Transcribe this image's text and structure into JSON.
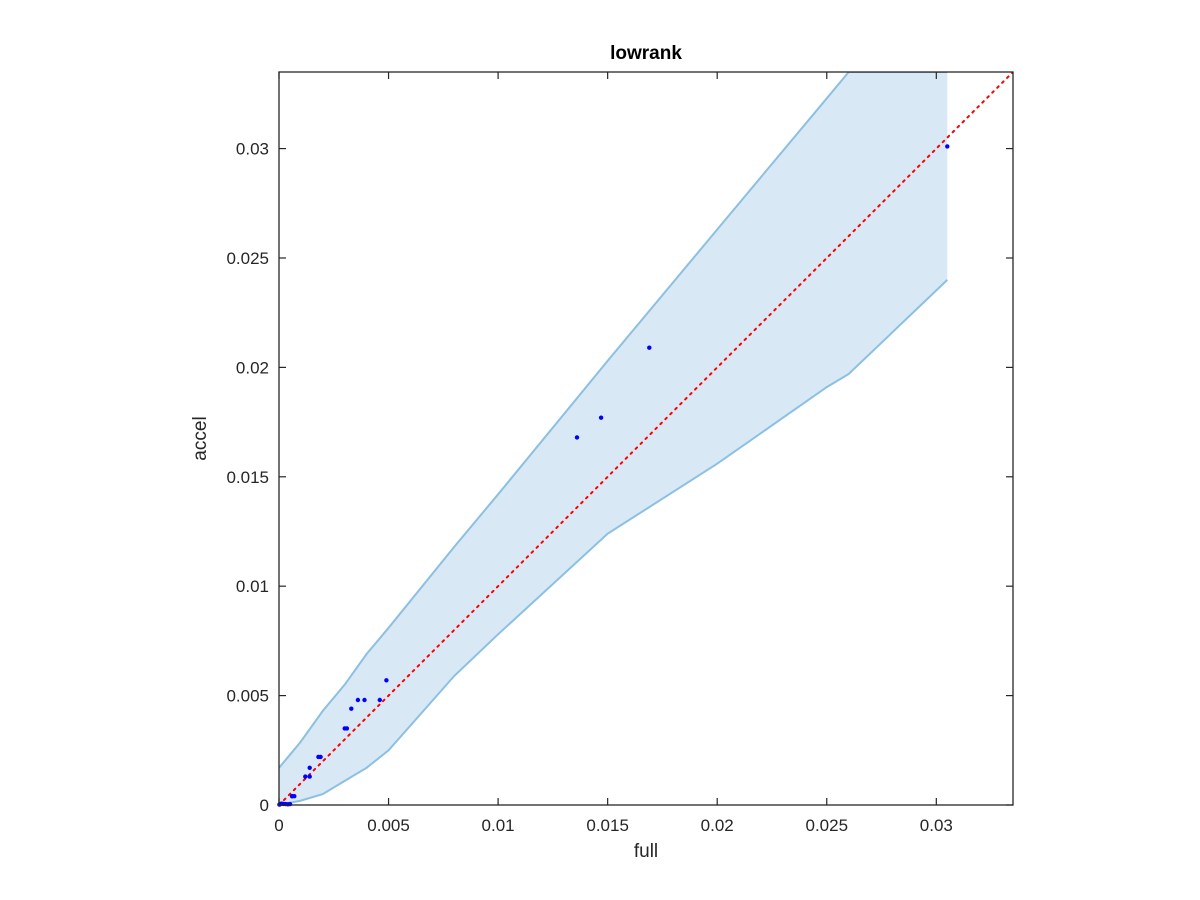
{
  "colors": {
    "band_fill": "#d9e8f5",
    "band_edge": "#8cc0e2",
    "points": "#0000ff",
    "diagonal": "#ff0000",
    "axes": "#262626"
  },
  "chart_data": {
    "type": "scatter",
    "title": "lowrank",
    "xlabel": "full",
    "ylabel": "accel",
    "xlim": [
      0,
      0.0335
    ],
    "ylim": [
      0,
      0.0335
    ],
    "grid": false,
    "x_ticks": [
      0,
      0.005,
      0.01,
      0.015,
      0.02,
      0.025,
      0.03
    ],
    "x_tick_labels": [
      "0",
      "0.005",
      "0.01",
      "0.015",
      "0.02",
      "0.025",
      "0.03"
    ],
    "y_ticks": [
      0,
      0.005,
      0.01,
      0.015,
      0.02,
      0.025,
      0.03
    ],
    "y_tick_labels": [
      "0",
      "0.005",
      "0.01",
      "0.015",
      "0.02",
      "0.025",
      "0.03"
    ],
    "series": [
      {
        "kind": "points",
        "x": [
          2e-05,
          4e-05,
          8e-05,
          0.00012,
          0.0002,
          0.0003,
          0.0004,
          0.0005,
          0.0006,
          0.0006,
          0.0007,
          0.0012,
          0.0014,
          0.0014,
          0.0018,
          0.0019,
          0.003,
          0.0031,
          0.0033,
          0.0036,
          0.0039,
          0.0046,
          0.0049,
          0.0136,
          0.0147,
          0.0169,
          0.0305
        ],
        "y": [
          2e-05,
          3e-05,
          5e-05,
          6e-05,
          5e-05,
          4e-05,
          3e-05,
          4e-05,
          0.0004,
          0.0004,
          0.0004,
          0.0013,
          0.0013,
          0.0017,
          0.0022,
          0.0022,
          0.0035,
          0.0035,
          0.0044,
          0.0048,
          0.0048,
          0.0048,
          0.0057,
          0.0168,
          0.0177,
          0.0209,
          0.0301
        ]
      },
      {
        "kind": "reference-line",
        "x": [
          0,
          0.0335
        ],
        "y": [
          0,
          0.0335
        ]
      },
      {
        "kind": "band",
        "x": [
          0,
          0.0005,
          0.001,
          0.002,
          0.003,
          0.004,
          0.005,
          0.008,
          0.01,
          0.015,
          0.02,
          0.025,
          0.026,
          0.0305
        ],
        "upper": [
          0.0017,
          0.0023,
          0.0029,
          0.0043,
          0.0055,
          0.0069,
          0.0081,
          0.0118,
          0.0142,
          0.0203,
          0.0263,
          0.0323,
          0.0335,
          0.0335
        ],
        "lower": [
          0,
          0.0001,
          0.0002,
          0.0005,
          0.0011,
          0.0017,
          0.0025,
          0.0059,
          0.0078,
          0.0124,
          0.0156,
          0.0191,
          0.0197,
          0.024
        ]
      }
    ]
  }
}
